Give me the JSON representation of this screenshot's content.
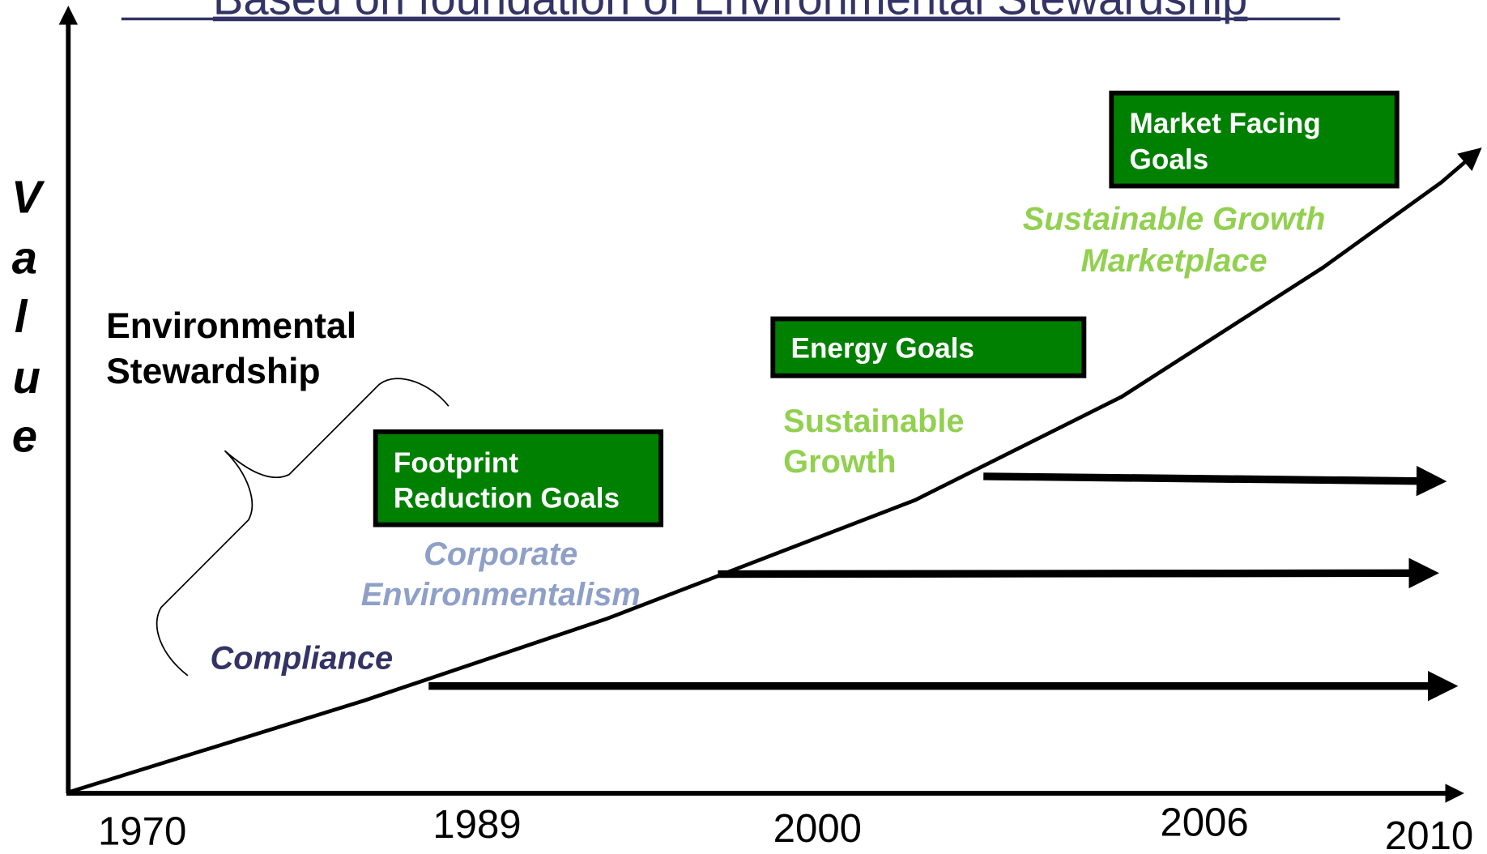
{
  "title": "Based on foundation of Environmental Stewardship",
  "y_axis_letters": [
    "V",
    "a",
    "l",
    "u",
    "e"
  ],
  "x_axis_labels": [
    "1970",
    "1989",
    "2000",
    "2006",
    "2010"
  ],
  "stewardship_label": [
    "Environmental",
    "Stewardship"
  ],
  "stages": [
    {
      "lines": [
        "Compliance"
      ]
    },
    {
      "lines": [
        "Corporate",
        "Environmentalism"
      ]
    },
    {
      "lines": [
        "Sustainable",
        "Growth"
      ]
    },
    {
      "lines": [
        "Sustainable Growth",
        "Marketplace"
      ]
    }
  ],
  "goals": [
    {
      "lines": [
        "Footprint",
        "Reduction Goals"
      ]
    },
    {
      "lines": [
        "Energy Goals"
      ]
    },
    {
      "lines": [
        "Market Facing",
        "Goals"
      ]
    }
  ]
}
